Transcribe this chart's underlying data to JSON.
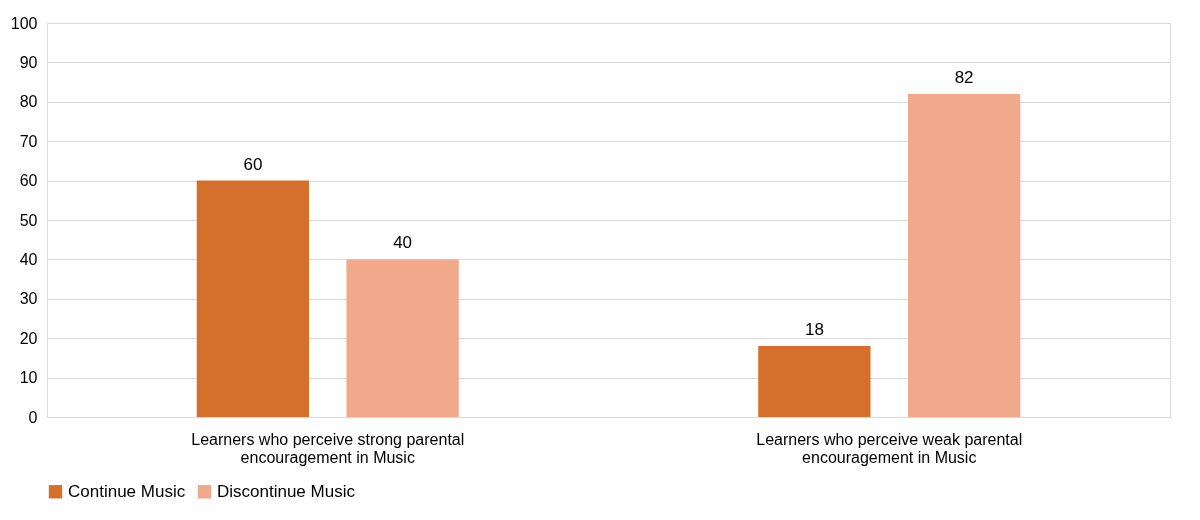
{
  "chart_data": {
    "type": "bar",
    "categories": [
      "Learners who perceive strong parental encouragement in Music",
      "Learners who perceive weak parental encouragement in Music"
    ],
    "series": [
      {
        "name": "Continue Music",
        "color": "#d4702c",
        "values": [
          60,
          18
        ]
      },
      {
        "name": "Discontinue Music",
        "color": "#f0a98a",
        "values": [
          40,
          82
        ]
      }
    ],
    "ylim": [
      0,
      100
    ],
    "yticks": [
      0,
      10,
      20,
      30,
      40,
      50,
      60,
      70,
      80,
      90,
      100
    ],
    "grid": "y",
    "legend": "bottom",
    "data_labels": true
  }
}
